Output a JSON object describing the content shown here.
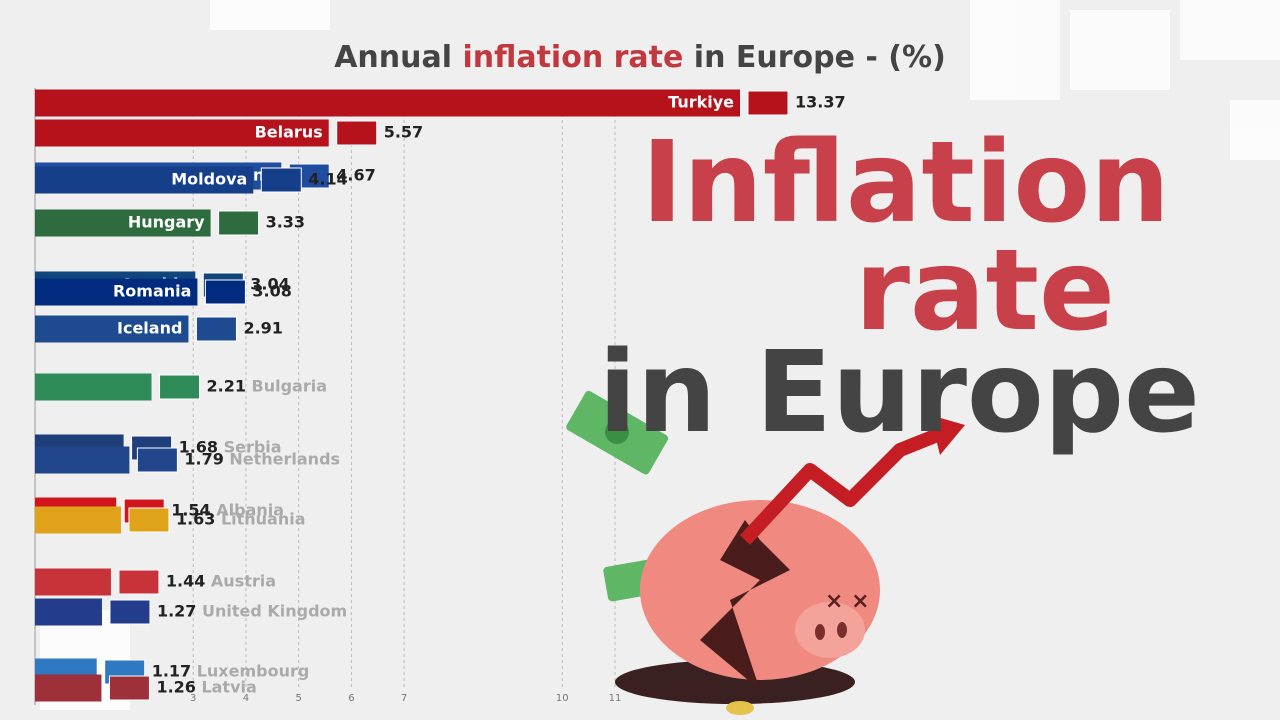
{
  "chart_data": {
    "type": "bar",
    "title_parts": [
      "Annual ",
      "inflation rate",
      " in Europe - (%)"
    ],
    "categories": [
      "Turkiye",
      "Belarus",
      "Ukraine",
      "Moldova",
      "Hungary",
      "Czechia",
      "Romania",
      "Iceland",
      "Bulgaria",
      "Serbia",
      "Netherlands",
      "Albania",
      "Lithuania",
      "Austria",
      "United Kingdom",
      "Luxembourg",
      "Latvia"
    ],
    "values": [
      13.37,
      5.57,
      4.67,
      4.14,
      3.33,
      3.04,
      3.08,
      2.91,
      2.21,
      1.68,
      1.79,
      1.54,
      1.63,
      1.44,
      1.27,
      1.17,
      1.26
    ],
    "colors": [
      "#b5121b",
      "#b5121b",
      "#1f4ea0",
      "#163f8a",
      "#2e6b3e",
      "#11457e",
      "#002b7f",
      "#1e4b8f",
      "#2e8b57",
      "#1f3f7a",
      "#21468b",
      "#d0161c",
      "#e0a21b",
      "#c8333a",
      "#243c8c",
      "#2f78c2",
      "#9e3039"
    ],
    "xlim": [
      0,
      13.37
    ],
    "xticks": [
      3,
      4,
      5,
      6,
      7,
      10,
      11
    ],
    "grid": true,
    "overlay": {
      "lines": [
        "Inflation",
        "rate",
        "in Europe"
      ]
    }
  }
}
